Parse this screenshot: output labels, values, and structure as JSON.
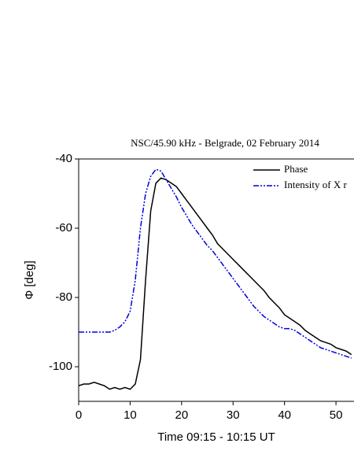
{
  "chart_data": {
    "type": "line",
    "title": "NSC/45.90 kHz - Belgrade, 02 February 2014",
    "x_label": "Time 09:15 - 10:15 UT",
    "y_label": "Φ [deg]",
    "x": [
      0,
      1,
      2,
      3,
      4,
      5,
      6,
      7,
      8,
      9,
      10,
      11,
      12,
      13,
      14,
      15,
      16,
      17,
      18,
      19,
      20,
      21,
      22,
      23,
      24,
      25,
      26,
      27,
      28,
      29,
      30,
      31,
      32,
      33,
      34,
      35,
      36,
      37,
      38,
      39,
      40,
      41,
      42,
      43,
      44,
      45,
      46,
      47,
      48,
      49,
      50,
      51,
      52,
      53
    ],
    "series": [
      {
        "name": "Phase",
        "color": "#000000",
        "dash": "solid",
        "values": [
          -105.5,
          -105,
          -105,
          -104.5,
          -105,
          -105.5,
          -106.5,
          -106,
          -106.5,
          -106,
          -106.5,
          -105,
          -98,
          -75,
          -55,
          -47,
          -45.5,
          -46,
          -47,
          -48,
          -50,
          -52,
          -54,
          -56,
          -58,
          -60,
          -62,
          -64.5,
          -66,
          -67.5,
          -69,
          -70.5,
          -72,
          -73.5,
          -75,
          -76.5,
          -78,
          -80,
          -81.5,
          -83,
          -85,
          -86,
          -87,
          -88,
          -89.5,
          -90.5,
          -91.5,
          -92.5,
          -93,
          -93.5,
          -94.5,
          -95,
          -95.5,
          -96.5
        ]
      },
      {
        "name": "Intensity of X r",
        "color": "#0000dd",
        "dash": "dash-dot-dot",
        "values": [
          -90,
          -90,
          -90,
          -90,
          -90,
          -90,
          -90,
          -89.5,
          -88.5,
          -87,
          -84,
          -75,
          -60,
          -50,
          -45,
          -43,
          -43.5,
          -46,
          -48.5,
          -51,
          -54,
          -56.5,
          -59,
          -61,
          -63,
          -65,
          -66.5,
          -68.5,
          -70.5,
          -72.5,
          -74.5,
          -76.5,
          -78.5,
          -80.5,
          -82.5,
          -84,
          -85.5,
          -86.5,
          -87.5,
          -88.5,
          -89,
          -89,
          -89.5,
          -90.5,
          -91.5,
          -92.5,
          -93.5,
          -94.5,
          -95,
          -95.5,
          -96,
          -96.5,
          -97,
          -97.5
        ]
      }
    ],
    "xlim": [
      0,
      53.5
    ],
    "ylim": [
      -110,
      -40
    ],
    "xticks": [
      0,
      10,
      20,
      30,
      40,
      50
    ],
    "yticks": [
      -40,
      -60,
      -80,
      -100
    ],
    "legend": "upper-right",
    "grid": false
  }
}
